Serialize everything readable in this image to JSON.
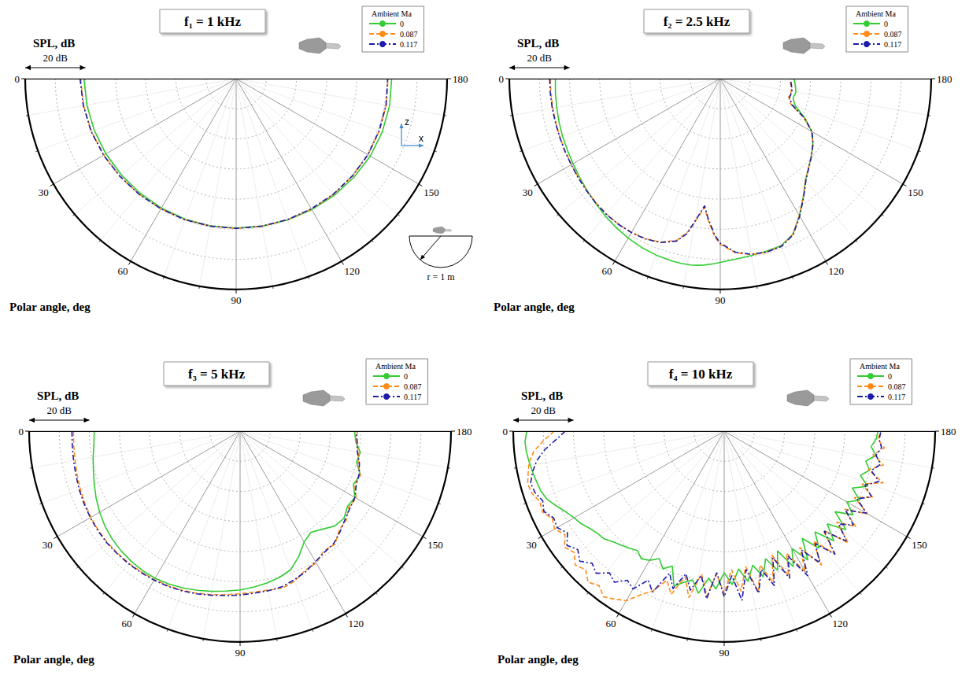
{
  "chart_data": [
    {
      "type": "polar",
      "title": "f₁ = 1 kHz",
      "xlabel": "Polar angle, deg",
      "ylabel": "SPL, dB",
      "legend_title": "Ambient Ma",
      "legend": "upper right",
      "grid": true,
      "tick_labels": "x",
      "scale_bar": {
        "label": "20 dB",
        "value": 20
      },
      "inset": {
        "z_label": "z",
        "x_label": "x",
        "radius_label": "r = 1 m"
      },
      "xlim": [
        0,
        180
      ],
      "xticks": [
        0,
        30,
        60,
        90,
        120,
        150,
        180
      ],
      "ylim": [
        30,
        100
      ],
      "yticks": [
        30,
        40,
        50,
        60,
        70,
        80,
        90,
        100
      ],
      "x": [
        0,
        10,
        20,
        30,
        40,
        50,
        60,
        70,
        80,
        90,
        100,
        110,
        120,
        130,
        140,
        150,
        160,
        170,
        180
      ],
      "series": [
        {
          "name": "0",
          "color": "#33cc33",
          "line_style": "solid",
          "values": [
            80.5,
            80.3,
            80.1,
            79.9,
            79.7,
            79.6,
            79.6,
            79.6,
            79.6,
            79.6,
            79.7,
            79.9,
            80.2,
            80.6,
            81.0,
            81.4,
            81.6,
            81.7,
            81.6
          ]
        },
        {
          "name": "0.087",
          "color": "#ff8c1a",
          "line_style": "dashed",
          "values": [
            81.6,
            81.4,
            81.1,
            80.7,
            80.4,
            80.1,
            79.9,
            79.8,
            79.7,
            79.7,
            79.7,
            79.8,
            80.0,
            80.2,
            80.4,
            80.5,
            80.6,
            80.6,
            80.4
          ]
        },
        {
          "name": "0.117",
          "color": "#1c1ca8",
          "line_style": "dashdot",
          "values": [
            81.8,
            81.5,
            81.2,
            80.8,
            80.4,
            80.1,
            79.9,
            79.8,
            79.7,
            79.7,
            79.7,
            79.8,
            79.9,
            80.1,
            80.3,
            80.5,
            80.5,
            80.5,
            80.3
          ]
        }
      ]
    },
    {
      "type": "polar",
      "title": "f₂ = 2.5 kHz",
      "xlabel": "Polar angle, deg",
      "ylabel": "SPL, dB",
      "legend_title": "Ambient Ma",
      "legend": "upper right",
      "grid": true,
      "tick_labels": "x",
      "scale_bar": {
        "label": "20 dB",
        "value": 20
      },
      "xlim": [
        0,
        180
      ],
      "xticks": [
        0,
        30,
        60,
        90,
        120,
        150,
        180
      ],
      "ylim": [
        30,
        100
      ],
      "yticks": [
        30,
        40,
        50,
        60,
        70,
        80,
        90,
        100
      ],
      "x": [
        0,
        5,
        10,
        15,
        20,
        25,
        30,
        35,
        40,
        45,
        50,
        55,
        60,
        65,
        70,
        75,
        78,
        81,
        83,
        85,
        88,
        90,
        95,
        100,
        105,
        110,
        115,
        120,
        125,
        130,
        135,
        140,
        145,
        150,
        155,
        160,
        165,
        170,
        175,
        180
      ],
      "series": [
        {
          "name": "0",
          "color": "#33cc33",
          "line_style": "solid",
          "values": [
            84.7,
            84.9,
            85.1,
            85.4,
            85.7,
            86.0,
            86.4,
            87.0,
            87.7,
            88.5,
            89.4,
            90.3,
            91.1,
            91.8,
            92.3,
            92.6,
            92.7,
            92.6,
            92.4,
            92.1,
            91.5,
            91.0,
            90.1,
            89.6,
            89.3,
            89.0,
            87.0,
            82.5,
            78.0,
            74.0,
            71.5,
            69.5,
            67.5,
            65.0,
            61.0,
            56.5,
            55.0,
            55.5,
            55.0,
            54.5
          ]
        },
        {
          "name": "0.087",
          "color": "#ff8c1a",
          "line_style": "dashed",
          "values": [
            86.4,
            86.4,
            86.4,
            86.5,
            86.6,
            86.8,
            87.0,
            87.4,
            87.8,
            88.3,
            88.7,
            88.9,
            88.9,
            88.6,
            87.8,
            85.5,
            82.0,
            76.5,
            73.0,
            77.0,
            82.5,
            85.0,
            88.0,
            89.3,
            89.6,
            89.2,
            87.0,
            82.5,
            78.0,
            74.0,
            71.5,
            69.5,
            67.5,
            65.0,
            60.5,
            55.0,
            53.5,
            54.0,
            53.5,
            53.0
          ]
        },
        {
          "name": "0.117",
          "color": "#1c1ca8",
          "line_style": "dashdot",
          "values": [
            86.6,
            86.6,
            86.6,
            86.6,
            86.7,
            86.9,
            87.1,
            87.5,
            87.9,
            88.4,
            88.8,
            89.0,
            89.0,
            88.7,
            87.9,
            85.8,
            82.5,
            76.0,
            72.5,
            76.5,
            82.0,
            84.6,
            87.8,
            89.2,
            89.6,
            89.3,
            87.2,
            82.7,
            78.2,
            74.2,
            71.6,
            69.6,
            67.6,
            65.2,
            60.8,
            55.3,
            53.8,
            54.2,
            53.7,
            53.2
          ]
        }
      ]
    },
    {
      "type": "polar",
      "title": "f₃ = 5 kHz",
      "xlabel": "Polar angle, deg",
      "ylabel": "SPL, dB",
      "legend_title": "Ambient Ma",
      "legend": "upper right",
      "grid": true,
      "tick_labels": "x",
      "scale_bar": {
        "label": "20 dB",
        "value": 20
      },
      "xlim": [
        0,
        180
      ],
      "xticks": [
        0,
        30,
        60,
        90,
        120,
        150,
        180
      ],
      "ylim": [
        30,
        100
      ],
      "yticks": [
        30,
        40,
        50,
        60,
        70,
        80,
        90,
        100
      ],
      "x": [
        0,
        5,
        10,
        15,
        20,
        25,
        30,
        35,
        40,
        45,
        50,
        55,
        60,
        65,
        70,
        75,
        80,
        85,
        90,
        95,
        100,
        105,
        110,
        115,
        120,
        125,
        130,
        135,
        140,
        145,
        150,
        155,
        160,
        165,
        170,
        175,
        180
      ],
      "series": [
        {
          "name": "0",
          "color": "#33cc33",
          "line_style": "solid",
          "values": [
            78.4,
            78.7,
            79.5,
            80.4,
            81.5,
            82.7,
            83.8,
            84.8,
            85.5,
            86.0,
            86.3,
            86.5,
            86.4,
            86.0,
            85.4,
            84.7,
            84.0,
            83.3,
            82.7,
            82.0,
            81.2,
            80.3,
            79.0,
            76.0,
            72.5,
            71.0,
            72.5,
            74.5,
            75.0,
            73.5,
            74.0,
            71.5,
            72.5,
            70.0,
            70.5,
            68.5,
            68.0
          ]
        },
        {
          "name": "0.087",
          "color": "#ff8c1a",
          "line_style": "dashed",
          "values": [
            85.3,
            85.4,
            85.6,
            86.0,
            86.4,
            86.8,
            87.2,
            87.4,
            87.5,
            87.4,
            87.3,
            87.1,
            86.9,
            86.6,
            86.2,
            85.7,
            85.1,
            84.5,
            84.0,
            83.6,
            83.6,
            84.0,
            83.0,
            81.0,
            80.5,
            78.5,
            79.0,
            76.5,
            76.0,
            74.0,
            74.5,
            72.0,
            72.5,
            70.5,
            70.0,
            68.5,
            69.0
          ]
        },
        {
          "name": "0.117",
          "color": "#1c1ca8",
          "line_style": "dashdot",
          "values": [
            85.8,
            85.9,
            86.1,
            86.4,
            86.8,
            87.1,
            87.4,
            87.6,
            87.7,
            87.6,
            87.5,
            87.3,
            87.1,
            86.8,
            86.4,
            85.9,
            85.3,
            84.8,
            84.4,
            84.0,
            83.8,
            83.5,
            82.5,
            81.5,
            80.0,
            79.0,
            78.5,
            77.0,
            75.5,
            74.5,
            74.0,
            72.5,
            72.0,
            71.0,
            69.5,
            69.0,
            68.5
          ]
        }
      ]
    },
    {
      "type": "polar",
      "title": "f₄ = 10 kHz",
      "xlabel": "Polar angle, deg",
      "ylabel": "SPL, dB",
      "legend_title": "Ambient Ma",
      "legend": "upper right",
      "grid": true,
      "tick_labels": "x",
      "scale_bar": {
        "label": "20 dB",
        "value": 20
      },
      "xlim": [
        0,
        180
      ],
      "xticks": [
        0,
        30,
        60,
        90,
        120,
        150,
        180
      ],
      "ylim": [
        30,
        100
      ],
      "yticks": [
        30,
        40,
        50,
        60,
        70,
        80,
        90,
        100
      ],
      "x": [
        0,
        3,
        6,
        9,
        12,
        15,
        18,
        21,
        24,
        27,
        30,
        33,
        36,
        39,
        42,
        45,
        48,
        51,
        54,
        57,
        60,
        63,
        66,
        69,
        72,
        75,
        78,
        81,
        84,
        87,
        90,
        93,
        96,
        99,
        102,
        105,
        108,
        111,
        114,
        117,
        120,
        123,
        126,
        129,
        132,
        135,
        138,
        141,
        144,
        147,
        150,
        153,
        156,
        159,
        162,
        165,
        168,
        171,
        174,
        177,
        180
      ],
      "series": [
        {
          "name": "0",
          "color": "#33cc33",
          "line_style": "solid",
          "values": [
            95.5,
            96.2,
            96.0,
            95.5,
            95.0,
            94.5,
            94.0,
            93.0,
            91.0,
            89.0,
            87.5,
            86.5,
            85.0,
            84.0,
            83.5,
            82.0,
            81.0,
            80.0,
            79.0,
            80.5,
            79.5,
            77.5,
            80.0,
            78.0,
            84.0,
            82.0,
            80.5,
            84.5,
            79.0,
            82.5,
            77.0,
            81.0,
            76.0,
            80.5,
            75.5,
            80.0,
            74.5,
            79.5,
            73.5,
            80.5,
            75.0,
            81.0,
            74.0,
            80.0,
            75.0,
            81.5,
            76.0,
            82.0,
            75.5,
            81.0,
            77.0,
            80.5,
            76.5,
            81.0,
            77.5,
            80.0,
            78.0,
            81.0,
            79.0,
            80.5,
            81.0
          ]
        },
        {
          "name": "0.087",
          "color": "#ff8c1a",
          "line_style": "dashed",
          "values": [
            86.4,
            90.0,
            93.5,
            95.5,
            96.5,
            97.5,
            97.0,
            95.5,
            96.0,
            94.0,
            95.0,
            93.0,
            95.5,
            94.0,
            96.5,
            95.0,
            97.5,
            96.0,
            98.0,
            96.5,
            95.0,
            91.0,
            88.0,
            83.0,
            87.0,
            80.0,
            86.5,
            78.0,
            85.0,
            77.5,
            84.0,
            76.0,
            83.5,
            75.5,
            84.5,
            76.0,
            83.0,
            74.0,
            82.5,
            75.5,
            84.0,
            76.0,
            85.0,
            77.0,
            84.5,
            76.5,
            85.5,
            78.0,
            84.0,
            77.5,
            85.0,
            78.5,
            84.0,
            79.0,
            85.5,
            79.5,
            84.0,
            80.0,
            83.5,
            81.0,
            82.0
          ]
        },
        {
          "name": "0.117",
          "color": "#1c1ca8",
          "line_style": "dashdot",
          "values": [
            82.7,
            86.0,
            90.0,
            93.0,
            95.0,
            96.5,
            96.0,
            94.5,
            95.5,
            93.5,
            94.0,
            92.0,
            94.5,
            92.5,
            94.5,
            92.0,
            93.5,
            90.5,
            92.0,
            89.0,
            90.5,
            85.5,
            88.5,
            80.5,
            85.0,
            79.0,
            84.0,
            78.5,
            86.0,
            77.0,
            85.0,
            78.0,
            86.5,
            76.5,
            85.0,
            77.5,
            84.0,
            75.0,
            83.5,
            76.5,
            85.5,
            77.0,
            84.0,
            78.0,
            85.0,
            77.0,
            84.5,
            79.0,
            83.0,
            78.0,
            84.5,
            79.5,
            83.5,
            80.0,
            84.0,
            80.5,
            83.0,
            81.0,
            82.5,
            81.5,
            82.0
          ]
        }
      ]
    }
  ]
}
